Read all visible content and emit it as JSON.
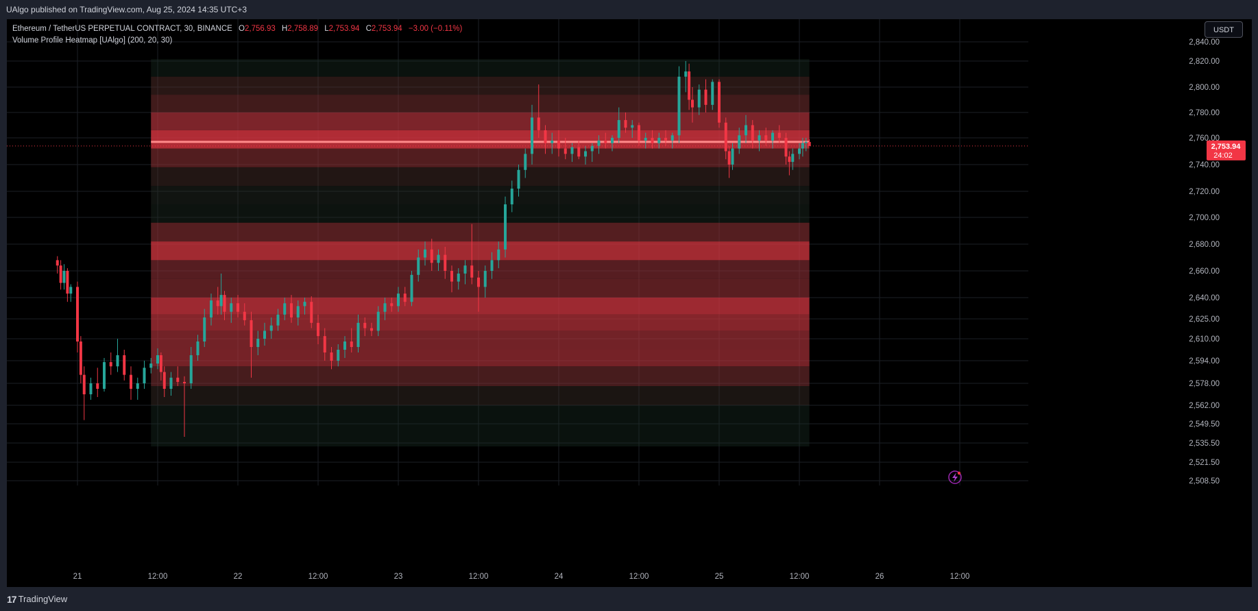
{
  "header": {
    "published_by": "UAlgo published on TradingView.com, Aug 25, 2024 14:35 UTC+3"
  },
  "legend": {
    "symbol": "Ethereum / TetherUS PERPETUAL CONTRACT, 30, BINANCE",
    "open_key": "O",
    "open": "2,756.93",
    "high_key": "H",
    "high": "2,758.89",
    "low_key": "L",
    "low": "2,753.94",
    "close_key": "C",
    "close": "2,753.94",
    "change": "−3.00 (−0.11%)",
    "indicator": "Volume Profile Heatmap [UAlgo] (200, 20, 30)"
  },
  "toolbar": {
    "currency": "USDT"
  },
  "price_tag": {
    "price": "2,753.94",
    "countdown": "24:02"
  },
  "footer": {
    "brand": "TradingView",
    "logo_icon": "tradingview-logo-icon"
  },
  "chart_data": {
    "type": "candlestick",
    "symbol": "ETHUSDT.P",
    "interval_minutes": 30,
    "y_axis": {
      "tick_labels": [
        "2,840.00",
        "2,820.00",
        "2,800.00",
        "2,780.00",
        "2,760.00",
        "2,740.00",
        "2,720.00",
        "2,700.00",
        "2,680.00",
        "2,660.00",
        "2,640.00",
        "2,625.00",
        "2,610.00",
        "2,594.00",
        "2,578.00",
        "2,562.00",
        "2,549.50",
        "2,535.50",
        "2,521.50",
        "2,508.50"
      ],
      "tick_values": [
        2840,
        2820,
        2800,
        2780,
        2760,
        2740,
        2720,
        2700,
        2680,
        2660,
        2640,
        2625,
        2610,
        2594,
        2578,
        2562,
        2549.5,
        2535.5,
        2521.5,
        2508.5
      ]
    },
    "x_axis": {
      "tick_labels": [
        "21",
        "12:00",
        "22",
        "12:00",
        "23",
        "12:00",
        "24",
        "12:00",
        "25",
        "12:00",
        "26",
        "12:00"
      ],
      "tick_times": [
        "2024-08-21 00:00",
        "2024-08-21 12:00",
        "2024-08-22 00:00",
        "2024-08-22 12:00",
        "2024-08-23 00:00",
        "2024-08-23 12:00",
        "2024-08-24 00:00",
        "2024-08-24 12:00",
        "2024-08-25 00:00",
        "2024-08-25 12:00",
        "2024-08-26 00:00",
        "2024-08-26 12:00"
      ]
    },
    "last_price": 2753.94,
    "colors": {
      "up": "#26a69a",
      "down": "#f23645",
      "grid": "#1c1f26",
      "profile_fill": "#f23645",
      "profile_base": "#113329",
      "poc_line": "#ff8a8a"
    },
    "volume_profile": {
      "start": "2024-08-21 11:00",
      "end": "2024-08-25 13:30",
      "rows": [
        {
          "from": 2808,
          "to": 2822,
          "intensity": 0.02
        },
        {
          "from": 2794,
          "to": 2808,
          "intensity": 0.15
        },
        {
          "from": 2780,
          "to": 2794,
          "intensity": 0.25
        },
        {
          "from": 2766,
          "to": 2780,
          "intensity": 0.5
        },
        {
          "from": 2752,
          "to": 2766,
          "intensity": 0.72
        },
        {
          "from": 2738,
          "to": 2752,
          "intensity": 0.32
        },
        {
          "from": 2724,
          "to": 2738,
          "intensity": 0.12
        },
        {
          "from": 2710,
          "to": 2724,
          "intensity": 0.05
        },
        {
          "from": 2696,
          "to": 2710,
          "intensity": 0.03
        },
        {
          "from": 2682,
          "to": 2696,
          "intensity": 0.33
        },
        {
          "from": 2668,
          "to": 2682,
          "intensity": 0.66
        },
        {
          "from": 2654,
          "to": 2668,
          "intensity": 0.34
        },
        {
          "from": 2640,
          "to": 2654,
          "intensity": 0.36
        },
        {
          "from": 2628,
          "to": 2640,
          "intensity": 0.64
        },
        {
          "from": 2616,
          "to": 2628,
          "intensity": 0.54
        },
        {
          "from": 2602,
          "to": 2616,
          "intensity": 0.46
        },
        {
          "from": 2590,
          "to": 2602,
          "intensity": 0.47
        },
        {
          "from": 2576,
          "to": 2590,
          "intensity": 0.28
        },
        {
          "from": 2562,
          "to": 2576,
          "intensity": 0.09
        },
        {
          "from": 2533,
          "to": 2562,
          "intensity": 0.02
        }
      ],
      "poc_price": 2757
    },
    "candles": [
      {
        "t": "2024-08-20 21:00",
        "o": 2668,
        "h": 2671,
        "l": 2658,
        "c": 2664
      },
      {
        "t": "2024-08-20 21:30",
        "o": 2664,
        "h": 2668,
        "l": 2646,
        "c": 2651
      },
      {
        "t": "2024-08-20 22:00",
        "o": 2651,
        "h": 2665,
        "l": 2646,
        "c": 2660
      },
      {
        "t": "2024-08-20 22:30",
        "o": 2660,
        "h": 2662,
        "l": 2637,
        "c": 2643
      },
      {
        "t": "2024-08-20 23:00",
        "o": 2643,
        "h": 2650,
        "l": 2637,
        "c": 2648
      },
      {
        "t": "2024-08-21 00:00",
        "o": 2648,
        "h": 2652,
        "l": 2600,
        "c": 2608
      },
      {
        "t": "2024-08-21 00:30",
        "o": 2608,
        "h": 2612,
        "l": 2578,
        "c": 2584
      },
      {
        "t": "2024-08-21 01:00",
        "o": 2584,
        "h": 2590,
        "l": 2552,
        "c": 2570
      },
      {
        "t": "2024-08-21 02:00",
        "o": 2570,
        "h": 2582,
        "l": 2566,
        "c": 2578
      },
      {
        "t": "2024-08-21 03:00",
        "o": 2578,
        "h": 2589,
        "l": 2568,
        "c": 2574
      },
      {
        "t": "2024-08-21 04:00",
        "o": 2574,
        "h": 2596,
        "l": 2572,
        "c": 2593
      },
      {
        "t": "2024-08-21 05:00",
        "o": 2593,
        "h": 2600,
        "l": 2584,
        "c": 2590
      },
      {
        "t": "2024-08-21 06:00",
        "o": 2590,
        "h": 2610,
        "l": 2586,
        "c": 2598
      },
      {
        "t": "2024-08-21 07:00",
        "o": 2598,
        "h": 2602,
        "l": 2580,
        "c": 2584
      },
      {
        "t": "2024-08-21 08:00",
        "o": 2584,
        "h": 2590,
        "l": 2566,
        "c": 2574
      },
      {
        "t": "2024-08-21 09:00",
        "o": 2574,
        "h": 2582,
        "l": 2566,
        "c": 2578
      },
      {
        "t": "2024-08-21 10:00",
        "o": 2578,
        "h": 2594,
        "l": 2574,
        "c": 2589
      },
      {
        "t": "2024-08-21 11:00",
        "o": 2589,
        "h": 2596,
        "l": 2585,
        "c": 2592
      },
      {
        "t": "2024-08-21 12:00",
        "o": 2592,
        "h": 2603,
        "l": 2588,
        "c": 2598
      },
      {
        "t": "2024-08-21 12:30",
        "o": 2598,
        "h": 2600,
        "l": 2580,
        "c": 2586
      },
      {
        "t": "2024-08-21 13:00",
        "o": 2586,
        "h": 2590,
        "l": 2568,
        "c": 2574
      },
      {
        "t": "2024-08-21 14:00",
        "o": 2574,
        "h": 2586,
        "l": 2569,
        "c": 2582
      },
      {
        "t": "2024-08-21 15:00",
        "o": 2582,
        "h": 2590,
        "l": 2576,
        "c": 2579
      },
      {
        "t": "2024-08-21 16:00",
        "o": 2579,
        "h": 2583,
        "l": 2540,
        "c": 2578
      },
      {
        "t": "2024-08-21 17:00",
        "o": 2578,
        "h": 2604,
        "l": 2574,
        "c": 2598
      },
      {
        "t": "2024-08-21 18:00",
        "o": 2598,
        "h": 2613,
        "l": 2594,
        "c": 2608
      },
      {
        "t": "2024-08-21 19:00",
        "o": 2608,
        "h": 2632,
        "l": 2604,
        "c": 2626
      },
      {
        "t": "2024-08-21 20:00",
        "o": 2626,
        "h": 2643,
        "l": 2620,
        "c": 2638
      },
      {
        "t": "2024-08-21 21:00",
        "o": 2638,
        "h": 2648,
        "l": 2628,
        "c": 2634
      },
      {
        "t": "2024-08-21 21:30",
        "o": 2634,
        "h": 2658,
        "l": 2628,
        "c": 2642
      },
      {
        "t": "2024-08-21 22:00",
        "o": 2642,
        "h": 2645,
        "l": 2624,
        "c": 2630
      },
      {
        "t": "2024-08-21 23:00",
        "o": 2630,
        "h": 2640,
        "l": 2622,
        "c": 2636
      },
      {
        "t": "2024-08-22 00:00",
        "o": 2636,
        "h": 2642,
        "l": 2626,
        "c": 2630
      },
      {
        "t": "2024-08-22 01:00",
        "o": 2630,
        "h": 2636,
        "l": 2620,
        "c": 2624
      },
      {
        "t": "2024-08-22 02:00",
        "o": 2624,
        "h": 2630,
        "l": 2582,
        "c": 2604
      },
      {
        "t": "2024-08-22 03:00",
        "o": 2604,
        "h": 2616,
        "l": 2598,
        "c": 2610
      },
      {
        "t": "2024-08-22 04:00",
        "o": 2610,
        "h": 2622,
        "l": 2605,
        "c": 2616
      },
      {
        "t": "2024-08-22 05:00",
        "o": 2616,
        "h": 2626,
        "l": 2610,
        "c": 2620
      },
      {
        "t": "2024-08-22 06:00",
        "o": 2620,
        "h": 2632,
        "l": 2616,
        "c": 2628
      },
      {
        "t": "2024-08-22 07:00",
        "o": 2628,
        "h": 2640,
        "l": 2624,
        "c": 2636
      },
      {
        "t": "2024-08-22 08:00",
        "o": 2636,
        "h": 2642,
        "l": 2622,
        "c": 2626
      },
      {
        "t": "2024-08-22 09:00",
        "o": 2626,
        "h": 2638,
        "l": 2620,
        "c": 2634
      },
      {
        "t": "2024-08-22 10:00",
        "o": 2634,
        "h": 2640,
        "l": 2628,
        "c": 2637
      },
      {
        "t": "2024-08-22 11:00",
        "o": 2637,
        "h": 2641,
        "l": 2618,
        "c": 2622
      },
      {
        "t": "2024-08-22 12:00",
        "o": 2622,
        "h": 2628,
        "l": 2606,
        "c": 2612
      },
      {
        "t": "2024-08-22 13:00",
        "o": 2612,
        "h": 2618,
        "l": 2594,
        "c": 2600
      },
      {
        "t": "2024-08-22 14:00",
        "o": 2600,
        "h": 2604,
        "l": 2588,
        "c": 2594
      },
      {
        "t": "2024-08-22 15:00",
        "o": 2594,
        "h": 2606,
        "l": 2590,
        "c": 2602
      },
      {
        "t": "2024-08-22 16:00",
        "o": 2602,
        "h": 2612,
        "l": 2596,
        "c": 2608
      },
      {
        "t": "2024-08-22 17:00",
        "o": 2608,
        "h": 2618,
        "l": 2600,
        "c": 2604
      },
      {
        "t": "2024-08-22 18:00",
        "o": 2604,
        "h": 2628,
        "l": 2600,
        "c": 2622
      },
      {
        "t": "2024-08-22 19:00",
        "o": 2622,
        "h": 2626,
        "l": 2612,
        "c": 2618
      },
      {
        "t": "2024-08-22 20:00",
        "o": 2618,
        "h": 2622,
        "l": 2612,
        "c": 2616
      },
      {
        "t": "2024-08-22 21:00",
        "o": 2616,
        "h": 2634,
        "l": 2612,
        "c": 2630
      },
      {
        "t": "2024-08-22 22:00",
        "o": 2630,
        "h": 2640,
        "l": 2624,
        "c": 2636
      },
      {
        "t": "2024-08-22 23:00",
        "o": 2636,
        "h": 2640,
        "l": 2630,
        "c": 2634
      },
      {
        "t": "2024-08-23 00:00",
        "o": 2634,
        "h": 2648,
        "l": 2630,
        "c": 2643
      },
      {
        "t": "2024-08-23 01:00",
        "o": 2643,
        "h": 2648,
        "l": 2634,
        "c": 2637
      },
      {
        "t": "2024-08-23 02:00",
        "o": 2637,
        "h": 2660,
        "l": 2634,
        "c": 2657
      },
      {
        "t": "2024-08-23 03:00",
        "o": 2657,
        "h": 2676,
        "l": 2652,
        "c": 2670
      },
      {
        "t": "2024-08-23 04:00",
        "o": 2670,
        "h": 2682,
        "l": 2664,
        "c": 2676
      },
      {
        "t": "2024-08-23 05:00",
        "o": 2676,
        "h": 2684,
        "l": 2660,
        "c": 2666
      },
      {
        "t": "2024-08-23 06:00",
        "o": 2666,
        "h": 2676,
        "l": 2660,
        "c": 2672
      },
      {
        "t": "2024-08-23 07:00",
        "o": 2672,
        "h": 2678,
        "l": 2654,
        "c": 2660
      },
      {
        "t": "2024-08-23 08:00",
        "o": 2660,
        "h": 2664,
        "l": 2644,
        "c": 2652
      },
      {
        "t": "2024-08-23 09:00",
        "o": 2652,
        "h": 2662,
        "l": 2646,
        "c": 2658
      },
      {
        "t": "2024-08-23 10:00",
        "o": 2658,
        "h": 2668,
        "l": 2650,
        "c": 2664
      },
      {
        "t": "2024-08-23 11:00",
        "o": 2664,
        "h": 2695,
        "l": 2650,
        "c": 2655
      },
      {
        "t": "2024-08-23 12:00",
        "o": 2655,
        "h": 2660,
        "l": 2630,
        "c": 2648
      },
      {
        "t": "2024-08-23 13:00",
        "o": 2648,
        "h": 2664,
        "l": 2640,
        "c": 2660
      },
      {
        "t": "2024-08-23 14:00",
        "o": 2660,
        "h": 2674,
        "l": 2654,
        "c": 2668
      },
      {
        "t": "2024-08-23 15:00",
        "o": 2668,
        "h": 2682,
        "l": 2662,
        "c": 2676
      },
      {
        "t": "2024-08-23 16:00",
        "o": 2676,
        "h": 2716,
        "l": 2670,
        "c": 2710
      },
      {
        "t": "2024-08-23 17:00",
        "o": 2710,
        "h": 2728,
        "l": 2704,
        "c": 2722
      },
      {
        "t": "2024-08-23 18:00",
        "o": 2722,
        "h": 2740,
        "l": 2716,
        "c": 2736
      },
      {
        "t": "2024-08-23 19:00",
        "o": 2736,
        "h": 2752,
        "l": 2730,
        "c": 2748
      },
      {
        "t": "2024-08-23 20:00",
        "o": 2748,
        "h": 2786,
        "l": 2740,
        "c": 2776
      },
      {
        "t": "2024-08-23 21:00",
        "o": 2776,
        "h": 2802,
        "l": 2760,
        "c": 2766
      },
      {
        "t": "2024-08-23 22:00",
        "o": 2766,
        "h": 2770,
        "l": 2748,
        "c": 2756
      },
      {
        "t": "2024-08-23 23:00",
        "o": 2756,
        "h": 2764,
        "l": 2748,
        "c": 2758
      },
      {
        "t": "2024-08-24 00:00",
        "o": 2758,
        "h": 2766,
        "l": 2746,
        "c": 2752
      },
      {
        "t": "2024-08-24 01:00",
        "o": 2752,
        "h": 2760,
        "l": 2744,
        "c": 2748
      },
      {
        "t": "2024-08-24 02:00",
        "o": 2748,
        "h": 2756,
        "l": 2742,
        "c": 2753
      },
      {
        "t": "2024-08-24 03:00",
        "o": 2753,
        "h": 2758,
        "l": 2744,
        "c": 2746
      },
      {
        "t": "2024-08-24 04:00",
        "o": 2746,
        "h": 2754,
        "l": 2740,
        "c": 2750
      },
      {
        "t": "2024-08-24 05:00",
        "o": 2750,
        "h": 2756,
        "l": 2742,
        "c": 2754
      },
      {
        "t": "2024-08-24 06:00",
        "o": 2754,
        "h": 2762,
        "l": 2748,
        "c": 2758
      },
      {
        "t": "2024-08-24 07:00",
        "o": 2758,
        "h": 2764,
        "l": 2752,
        "c": 2756
      },
      {
        "t": "2024-08-24 08:00",
        "o": 2756,
        "h": 2762,
        "l": 2750,
        "c": 2760
      },
      {
        "t": "2024-08-24 09:00",
        "o": 2760,
        "h": 2784,
        "l": 2756,
        "c": 2774
      },
      {
        "t": "2024-08-24 10:00",
        "o": 2774,
        "h": 2780,
        "l": 2764,
        "c": 2768
      },
      {
        "t": "2024-08-24 11:00",
        "o": 2768,
        "h": 2774,
        "l": 2760,
        "c": 2770
      },
      {
        "t": "2024-08-24 12:00",
        "o": 2770,
        "h": 2772,
        "l": 2754,
        "c": 2758
      },
      {
        "t": "2024-08-24 13:00",
        "o": 2758,
        "h": 2764,
        "l": 2752,
        "c": 2760
      },
      {
        "t": "2024-08-24 14:00",
        "o": 2760,
        "h": 2766,
        "l": 2752,
        "c": 2756
      },
      {
        "t": "2024-08-24 15:00",
        "o": 2756,
        "h": 2764,
        "l": 2752,
        "c": 2760
      },
      {
        "t": "2024-08-24 16:00",
        "o": 2760,
        "h": 2766,
        "l": 2754,
        "c": 2758
      },
      {
        "t": "2024-08-24 17:00",
        "o": 2758,
        "h": 2764,
        "l": 2752,
        "c": 2762
      },
      {
        "t": "2024-08-24 18:00",
        "o": 2762,
        "h": 2816,
        "l": 2756,
        "c": 2808
      },
      {
        "t": "2024-08-24 19:00",
        "o": 2808,
        "h": 2820,
        "l": 2796,
        "c": 2812
      },
      {
        "t": "2024-08-24 19:30",
        "o": 2812,
        "h": 2818,
        "l": 2782,
        "c": 2790
      },
      {
        "t": "2024-08-24 20:00",
        "o": 2790,
        "h": 2800,
        "l": 2772,
        "c": 2784
      },
      {
        "t": "2024-08-24 21:00",
        "o": 2784,
        "h": 2802,
        "l": 2778,
        "c": 2798
      },
      {
        "t": "2024-08-24 22:00",
        "o": 2798,
        "h": 2806,
        "l": 2780,
        "c": 2786
      },
      {
        "t": "2024-08-24 23:00",
        "o": 2786,
        "h": 2806,
        "l": 2782,
        "c": 2804
      },
      {
        "t": "2024-08-25 00:00",
        "o": 2804,
        "h": 2806,
        "l": 2768,
        "c": 2772
      },
      {
        "t": "2024-08-25 01:00",
        "o": 2772,
        "h": 2776,
        "l": 2744,
        "c": 2750
      },
      {
        "t": "2024-08-25 01:30",
        "o": 2750,
        "h": 2754,
        "l": 2730,
        "c": 2740
      },
      {
        "t": "2024-08-25 02:00",
        "o": 2740,
        "h": 2756,
        "l": 2736,
        "c": 2752
      },
      {
        "t": "2024-08-25 03:00",
        "o": 2752,
        "h": 2768,
        "l": 2748,
        "c": 2762
      },
      {
        "t": "2024-08-25 04:00",
        "o": 2762,
        "h": 2778,
        "l": 2756,
        "c": 2770
      },
      {
        "t": "2024-08-25 05:00",
        "o": 2770,
        "h": 2774,
        "l": 2752,
        "c": 2758
      },
      {
        "t": "2024-08-25 06:00",
        "o": 2758,
        "h": 2766,
        "l": 2750,
        "c": 2762
      },
      {
        "t": "2024-08-25 07:00",
        "o": 2762,
        "h": 2768,
        "l": 2754,
        "c": 2758
      },
      {
        "t": "2024-08-25 08:00",
        "o": 2758,
        "h": 2766,
        "l": 2752,
        "c": 2764
      },
      {
        "t": "2024-08-25 09:00",
        "o": 2764,
        "h": 2770,
        "l": 2756,
        "c": 2760
      },
      {
        "t": "2024-08-25 10:00",
        "o": 2760,
        "h": 2764,
        "l": 2740,
        "c": 2746
      },
      {
        "t": "2024-08-25 10:30",
        "o": 2746,
        "h": 2750,
        "l": 2732,
        "c": 2742
      },
      {
        "t": "2024-08-25 11:00",
        "o": 2742,
        "h": 2752,
        "l": 2736,
        "c": 2748
      },
      {
        "t": "2024-08-25 12:00",
        "o": 2748,
        "h": 2756,
        "l": 2744,
        "c": 2752
      },
      {
        "t": "2024-08-25 12:30",
        "o": 2752,
        "h": 2760,
        "l": 2746,
        "c": 2756
      },
      {
        "t": "2024-08-25 13:00",
        "o": 2756.2,
        "h": 2760,
        "l": 2750,
        "c": 2756.93
      },
      {
        "t": "2024-08-25 13:30",
        "o": 2756.93,
        "h": 2758.89,
        "l": 2753.94,
        "c": 2753.94
      }
    ]
  }
}
